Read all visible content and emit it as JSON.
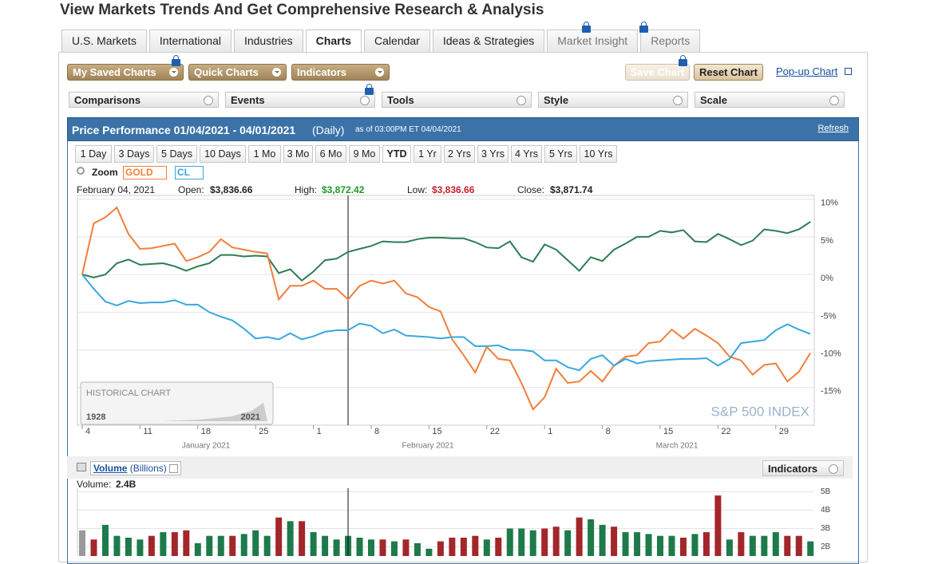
{
  "header": {
    "title": "View Markets Trends And Get Comprehensive Research & Analysis"
  },
  "tabs": [
    "U.S. Markets",
    "International",
    "Industries",
    "Charts",
    "Calendar",
    "Ideas & Strategies",
    "Market Insight",
    "Reports"
  ],
  "toolbar": {
    "left": [
      "My Saved Charts",
      "Quick Charts",
      "Indicators"
    ],
    "right": [
      "Save Chart",
      "Reset Chart"
    ],
    "link": "Pop-up Chart"
  },
  "dropdowns": [
    "Comparisons",
    "Events",
    "Tools",
    "Style",
    "Scale"
  ],
  "panel": {
    "title": "Price Performance 01/04/2021 - 04/01/2021",
    "interval": "(Daily)",
    "asof": "as of 03:00PM ET 04/04/2021",
    "refresh": "Refresh"
  },
  "ranges": [
    "1 Day",
    "3 Days",
    "5 Days",
    "10 Days",
    "1 Mo",
    "3 Mo",
    "6 Mo",
    "9 Mo",
    "YTD",
    "1 Yr",
    "2 Yrs",
    "3 Yrs",
    "4 Yrs",
    "5 Yrs",
    "10 Yrs"
  ],
  "zoom": "Zoom",
  "quote": {
    "date": "February 04, 2021",
    "open_label": "Open:",
    "open": "$3,836.66",
    "high_label": "High:",
    "high": "$3,872.42",
    "low_label": "Low:",
    "low": "$3,836.66",
    "close_label": "Close:",
    "close": "$3,871.74"
  },
  "historical": {
    "label": "HISTORICAL CHART",
    "start": "1928",
    "end": "2021"
  },
  "volume_panel": {
    "title": "Volume",
    "unit": "(Billions)",
    "indicators": "Indicators",
    "label": "Volume:",
    "value": "2.4B"
  },
  "chart_data": [
    {
      "type": "line",
      "categories": [
        "4",
        null,
        null,
        null,
        null,
        "11",
        null,
        null,
        null,
        null,
        "18",
        null,
        null,
        null,
        null,
        "25",
        null,
        null,
        null,
        null,
        "1",
        null,
        null,
        null,
        null,
        "8",
        null,
        null,
        null,
        null,
        "15",
        null,
        null,
        null,
        null,
        "22",
        null,
        null,
        null,
        null,
        "1",
        null,
        null,
        null,
        null,
        "8",
        null,
        null,
        null,
        null,
        "15",
        null,
        null,
        null,
        null,
        "22",
        null,
        null,
        null,
        null,
        "29",
        null,
        null,
        null
      ],
      "months": [
        "January 2021",
        "February 2021",
        "March 2021"
      ],
      "ylim": [
        -20,
        10.5
      ],
      "yticks": [
        {
          "value": 10,
          "label": "10%"
        },
        {
          "value": 5,
          "label": "5%"
        },
        {
          "value": 0,
          "label": "0%"
        },
        {
          "value": -5,
          "label": "-5%"
        },
        {
          "value": -10,
          "label": "-10%"
        },
        {
          "value": -15,
          "label": "-15%"
        }
      ],
      "grid": true,
      "series": [
        {
          "name": "S&P 500 INDEX",
          "color": "#2e7d55",
          "values": [
            0,
            -0.4,
            0,
            1.5,
            2.0,
            1.3,
            1.4,
            1.5,
            1.1,
            0.5,
            1.1,
            1.5,
            2.6,
            2.6,
            2.4,
            2.5,
            2.4,
            0.2,
            0.7,
            -0.8,
            0.4,
            1.9,
            2.1,
            3.0,
            3.4,
            3.8,
            4.4,
            4.3,
            4.3,
            4.7,
            4.9,
            4.9,
            4.8,
            4.8,
            4.3,
            3.6,
            3.5,
            4.4,
            2.3,
            1.7,
            4.0,
            3.3,
            1.9,
            0.5,
            2.3,
            1.8,
            3.3,
            4.1,
            5.0,
            5.0,
            5.8,
            5.6,
            5.9,
            4.4,
            4.3,
            5.4,
            4.7,
            3.9,
            4.5,
            6.0,
            5.8,
            5.5,
            6.0,
            7.0
          ]
        },
        {
          "name": "GOLD",
          "color": "#f07f3c",
          "values": [
            0,
            6.8,
            7.6,
            8.9,
            5.4,
            3.4,
            3.5,
            3.8,
            4.1,
            1.8,
            2.3,
            3.0,
            4.7,
            3.6,
            3.3,
            3.0,
            2.8,
            -3.3,
            -1.5,
            -1.5,
            -0.8,
            -1.9,
            -1.9,
            -3.3,
            -1.5,
            -0.8,
            -1.2,
            -0.8,
            -2.5,
            -3.0,
            -4.3,
            -4.9,
            -8.6,
            -10.7,
            -13.0,
            -9.6,
            -11.2,
            -11.4,
            -14.4,
            -17.9,
            -16.3,
            -12.5,
            -14.4,
            -14.2,
            -12.8,
            -14.2,
            -12.1,
            -10.9,
            -10.7,
            -9.1,
            -8.9,
            -7.3,
            -8.5,
            -7.2,
            -8.1,
            -9.1,
            -10.9,
            -11.4,
            -13.3,
            -12.0,
            -11.8,
            -14.2,
            -12.9,
            -10.4
          ]
        },
        {
          "name": "CL",
          "color": "#3aa7df",
          "values": [
            0,
            -1.9,
            -3.6,
            -4.1,
            -3.5,
            -3.8,
            -3.7,
            -3.7,
            -3.4,
            -4.0,
            -4.0,
            -5.0,
            -5.6,
            -6.1,
            -7.2,
            -8.5,
            -8.3,
            -8.6,
            -7.8,
            -8.6,
            -8.2,
            -7.6,
            -7.4,
            -7.4,
            -6.5,
            -6.8,
            -7.8,
            -7.3,
            -8.1,
            -8.2,
            -8.3,
            -8.5,
            -8.3,
            -8.3,
            -9.5,
            -9.5,
            -9.4,
            -10.0,
            -10.0,
            -10.2,
            -11.4,
            -11.4,
            -12.3,
            -12.7,
            -11.2,
            -10.7,
            -12.1,
            -11.2,
            -11.8,
            -11.5,
            -11.4,
            -11.3,
            -11.2,
            -11.2,
            -11.1,
            -12.1,
            -11.2,
            -9.1,
            -8.9,
            -8.7,
            -7.4,
            -6.6,
            -7.3,
            -7.9
          ]
        }
      ]
    },
    {
      "type": "bar",
      "ylim": [
        1.5,
        5.5
      ],
      "yticks": [
        {
          "value": 5,
          "label": "5B"
        },
        {
          "value": 4,
          "label": "4B"
        },
        {
          "value": 3,
          "label": "3B"
        },
        {
          "value": 2,
          "label": "2B"
        }
      ],
      "grid": true,
      "values": [
        2.9,
        2.4,
        3.2,
        2.6,
        2.5,
        2.4,
        2.6,
        2.8,
        2.8,
        2.9,
        2.2,
        2.6,
        2.6,
        2.6,
        2.7,
        2.9,
        2.6,
        3.6,
        3.4,
        3.4,
        2.8,
        2.6,
        2.4,
        2.6,
        2.5,
        2.4,
        2.4,
        2.3,
        2.4,
        2.2,
        1.9,
        2.3,
        2.5,
        2.5,
        2.6,
        2.4,
        2.5,
        3.0,
        3.0,
        2.9,
        3.0,
        3.1,
        2.9,
        3.6,
        3.5,
        3.2,
        3.1,
        2.8,
        2.8,
        2.7,
        2.6,
        2.6,
        2.5,
        2.7,
        2.8,
        4.8,
        2.4,
        2.8,
        2.6,
        2.6,
        2.8,
        2.6,
        2.6,
        2.3
      ],
      "colors": [
        "#9a9a9a",
        "#a3262a",
        "#1e7a4a",
        "#1e7a4a",
        "#1e7a4a",
        "#1e7a4a",
        "#a3262a",
        "#1e7a4a",
        "#a3262a",
        "#a3262a",
        "#1e7a4a",
        "#1e7a4a",
        "#1e7a4a",
        "#a3262a",
        "#1e7a4a",
        "#1e7a4a",
        "#1e7a4a",
        "#a3262a",
        "#1e7a4a",
        "#a3262a",
        "#1e7a4a",
        "#1e7a4a",
        "#1e7a4a",
        "#1e7a4a",
        "#1e7a4a",
        "#1e7a4a",
        "#a3262a",
        "#1e7a4a",
        "#a3262a",
        "#1e7a4a",
        "#1e7a4a",
        "#a3262a",
        "#a3262a",
        "#a3262a",
        "#a3262a",
        "#1e7a4a",
        "#a3262a",
        "#1e7a4a",
        "#1e7a4a",
        "#1e7a4a",
        "#a3262a",
        "#a3262a",
        "#1e7a4a",
        "#a3262a",
        "#1e7a4a",
        "#1e7a4a",
        "#a3262a",
        "#1e7a4a",
        "#1e7a4a",
        "#1e7a4a",
        "#1e7a4a",
        "#1e7a4a",
        "#a3262a",
        "#1e7a4a",
        "#a3262a",
        "#a3262a",
        "#1e7a4a",
        "#a3262a",
        "#1e7a4a",
        "#1e7a4a",
        "#1e7a4a",
        "#a3262a",
        "#a3262a",
        "#1e7a4a"
      ]
    }
  ]
}
